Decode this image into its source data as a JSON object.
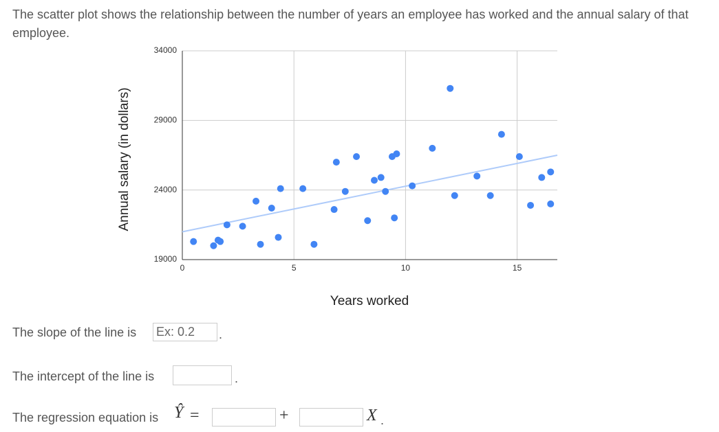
{
  "question": "The scatter plot shows the relationship between the number of years an employee has worked and the annual salary of that employee.",
  "chart_data": {
    "type": "scatter",
    "x_label": "Years worked",
    "y_label": "Annual salary (in dollars)",
    "xlim": [
      0,
      16.8
    ],
    "ylim": [
      19000,
      34000
    ],
    "xticks": [
      0,
      5,
      10,
      15
    ],
    "yticks": [
      19000,
      24000,
      29000,
      34000
    ],
    "grid": true,
    "series": [
      {
        "color": "#4285f4",
        "x": [
          0.5,
          1.4,
          1.6,
          1.7,
          2.0,
          2.7,
          3.3,
          3.5,
          4.0,
          4.3,
          4.4,
          5.4,
          5.9,
          6.8,
          6.9,
          7.3,
          7.8,
          8.3,
          8.6,
          8.9,
          9.1,
          9.4,
          9.6,
          9.5,
          10.3,
          11.2,
          12.0,
          12.2,
          13.2,
          13.8,
          14.3,
          15.1,
          15.6,
          16.1,
          16.5,
          16.5
        ],
        "values": [
          20300,
          20000,
          20400,
          20300,
          21500,
          21400,
          23200,
          20100,
          22700,
          20600,
          24100,
          24100,
          20100,
          22600,
          26000,
          23900,
          26400,
          21800,
          24700,
          24900,
          23900,
          26400,
          26600,
          22000,
          24300,
          27000,
          31300,
          23600,
          25000,
          23600,
          28000,
          26400,
          22900,
          24900,
          25300,
          23000
        ]
      }
    ],
    "trendline": {
      "color": "#aecbfa",
      "x": [
        0,
        16.8
      ],
      "values": [
        21000,
        26500
      ]
    }
  },
  "slope": {
    "prompt": "The slope of the line is",
    "placeholder": "Ex: 0.2",
    "end": "."
  },
  "intercept": {
    "prompt": "The intercept of the line is",
    "end": "."
  },
  "equation": {
    "prompt": "The regression equation is",
    "lhs": "Ŷ",
    "equals": "=",
    "plus": "+",
    "variable": "X",
    "end": "."
  }
}
